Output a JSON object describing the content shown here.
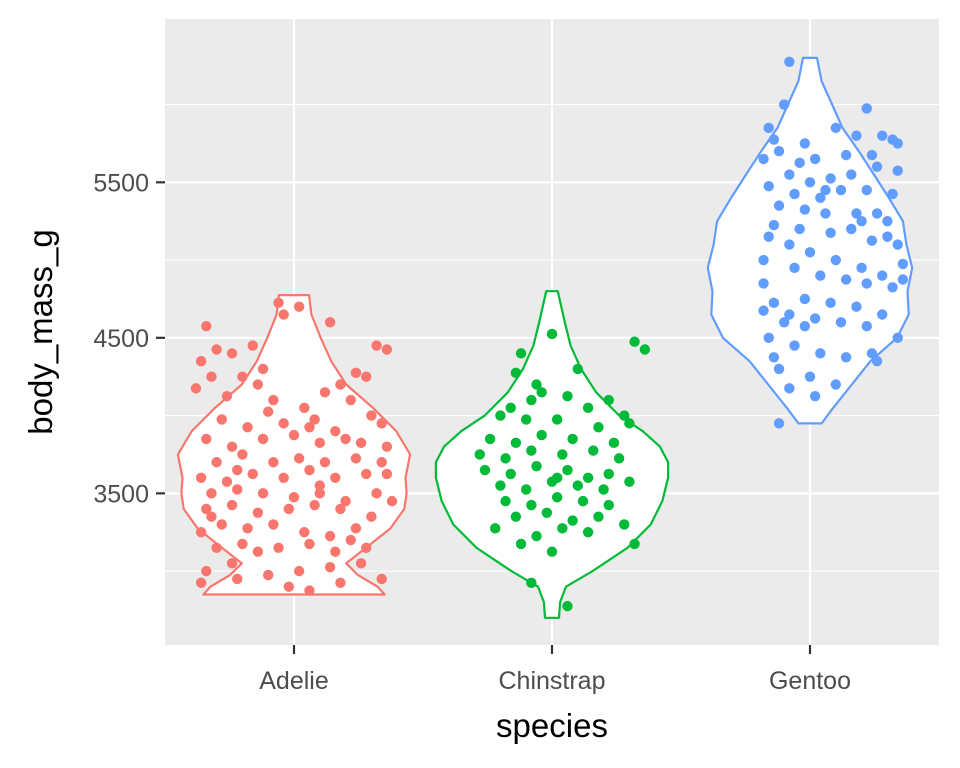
{
  "chart_data": {
    "type": "violin",
    "xlabel": "species",
    "ylabel": "body_mass_g",
    "categories": [
      "Adelie",
      "Chinstrap",
      "Gentoo"
    ],
    "ylim": [
      2525,
      6550
    ],
    "y_ticks": [
      3500,
      4500,
      5500
    ],
    "y_minor_ticks": [
      3000,
      4000,
      5000,
      6000
    ],
    "grid": true,
    "legend": "none",
    "colors": {
      "Adelie": "#F8766D",
      "Chinstrap": "#00BA38",
      "Gentoo": "#619CFF"
    },
    "panel_background": "#EBEBEB",
    "series": [
      {
        "category": "Adelie",
        "min": 2850,
        "max": 4775,
        "violin_profile": [
          [
            2850,
            0.78
          ],
          [
            2900,
            0.72
          ],
          [
            2975,
            0.55
          ],
          [
            3050,
            0.45
          ],
          [
            3150,
            0.62
          ],
          [
            3275,
            0.83
          ],
          [
            3400,
            0.95
          ],
          [
            3500,
            0.97
          ],
          [
            3600,
            0.96
          ],
          [
            3750,
            1.0
          ],
          [
            3900,
            0.88
          ],
          [
            4050,
            0.68
          ],
          [
            4200,
            0.45
          ],
          [
            4350,
            0.32
          ],
          [
            4500,
            0.23
          ],
          [
            4650,
            0.15
          ],
          [
            4775,
            0.13
          ]
        ],
        "points": [
          [
            -0.85,
            4575
          ],
          [
            -0.75,
            4425
          ],
          [
            -0.9,
            4350
          ],
          [
            -0.8,
            4250
          ],
          [
            -0.6,
            4400
          ],
          [
            -0.4,
            4450
          ],
          [
            -0.3,
            4300
          ],
          [
            -0.15,
            4725
          ],
          [
            -0.1,
            4650
          ],
          [
            0.05,
            4700
          ],
          [
            0.35,
            4600
          ],
          [
            0.8,
            4450
          ],
          [
            0.9,
            4425
          ],
          [
            0.6,
            4275
          ],
          [
            0.7,
            4250
          ],
          [
            0.45,
            4200
          ],
          [
            0.3,
            4150
          ],
          [
            -0.5,
            4250
          ],
          [
            -0.35,
            4200
          ],
          [
            -0.2,
            4100
          ],
          [
            0.1,
            4050
          ],
          [
            0.55,
            4100
          ],
          [
            0.75,
            4000
          ],
          [
            0.85,
            3950
          ],
          [
            -0.7,
            3975
          ],
          [
            -0.45,
            3925
          ],
          [
            -0.1,
            3950
          ],
          [
            0.2,
            3975
          ],
          [
            0.4,
            3900
          ],
          [
            -0.85,
            3850
          ],
          [
            -0.6,
            3800
          ],
          [
            -0.3,
            3850
          ],
          [
            0.0,
            3875
          ],
          [
            0.25,
            3825
          ],
          [
            0.5,
            3850
          ],
          [
            0.9,
            3800
          ],
          [
            -0.75,
            3700
          ],
          [
            -0.5,
            3750
          ],
          [
            -0.2,
            3700
          ],
          [
            0.05,
            3725
          ],
          [
            0.3,
            3700
          ],
          [
            0.6,
            3725
          ],
          [
            0.85,
            3700
          ],
          [
            -0.9,
            3600
          ],
          [
            -0.65,
            3575
          ],
          [
            -0.4,
            3625
          ],
          [
            -0.1,
            3600
          ],
          [
            0.15,
            3650
          ],
          [
            0.4,
            3600
          ],
          [
            0.7,
            3625
          ],
          [
            -0.8,
            3500
          ],
          [
            -0.55,
            3525
          ],
          [
            -0.3,
            3500
          ],
          [
            0.0,
            3475
          ],
          [
            0.25,
            3500
          ],
          [
            0.5,
            3450
          ],
          [
            0.8,
            3500
          ],
          [
            0.95,
            3450
          ],
          [
            -0.85,
            3400
          ],
          [
            -0.6,
            3425
          ],
          [
            -0.35,
            3375
          ],
          [
            -0.05,
            3400
          ],
          [
            0.2,
            3425
          ],
          [
            0.45,
            3400
          ],
          [
            0.75,
            3350
          ],
          [
            -0.9,
            3250
          ],
          [
            -0.7,
            3300
          ],
          [
            -0.45,
            3275
          ],
          [
            -0.2,
            3300
          ],
          [
            0.1,
            3250
          ],
          [
            0.35,
            3225
          ],
          [
            0.6,
            3275
          ],
          [
            -0.75,
            3150
          ],
          [
            -0.5,
            3175
          ],
          [
            -0.15,
            3150
          ],
          [
            0.15,
            3175
          ],
          [
            0.4,
            3125
          ],
          [
            0.7,
            3150
          ],
          [
            -0.85,
            3000
          ],
          [
            -0.6,
            3050
          ],
          [
            -0.25,
            2975
          ],
          [
            0.05,
            3000
          ],
          [
            0.35,
            3025
          ],
          [
            0.65,
            3050
          ],
          [
            -0.9,
            2925
          ],
          [
            -0.55,
            2950
          ],
          [
            0.15,
            2875
          ],
          [
            0.45,
            2925
          ],
          [
            0.85,
            2950
          ],
          [
            -0.95,
            4175
          ],
          [
            -0.65,
            4125
          ],
          [
            -0.25,
            4025
          ],
          [
            0.15,
            3925
          ],
          [
            0.65,
            3825
          ],
          [
            -0.55,
            3650
          ],
          [
            0.25,
            3550
          ],
          [
            -0.35,
            3125
          ],
          [
            0.55,
            3200
          ],
          [
            -0.05,
            2900
          ],
          [
            -0.8,
            3350
          ],
          [
            0.9,
            3625
          ]
        ]
      },
      {
        "category": "Chinstrap",
        "min": 2700,
        "max": 4800,
        "violin_profile": [
          [
            2700,
            0.06
          ],
          [
            2800,
            0.07
          ],
          [
            2900,
            0.12
          ],
          [
            3000,
            0.35
          ],
          [
            3150,
            0.65
          ],
          [
            3300,
            0.85
          ],
          [
            3450,
            0.95
          ],
          [
            3600,
            1.0
          ],
          [
            3700,
            1.0
          ],
          [
            3800,
            0.93
          ],
          [
            3900,
            0.78
          ],
          [
            4000,
            0.58
          ],
          [
            4150,
            0.38
          ],
          [
            4300,
            0.25
          ],
          [
            4450,
            0.16
          ],
          [
            4600,
            0.11
          ],
          [
            4800,
            0.05
          ]
        ],
        "points": [
          [
            -0.3,
            4400
          ],
          [
            -0.35,
            4275
          ],
          [
            0.0,
            4525
          ],
          [
            0.8,
            4475
          ],
          [
            0.9,
            4425
          ],
          [
            0.25,
            4300
          ],
          [
            -0.1,
            4150
          ],
          [
            -0.2,
            4100
          ],
          [
            0.15,
            4125
          ],
          [
            0.55,
            4100
          ],
          [
            0.7,
            4000
          ],
          [
            0.35,
            4050
          ],
          [
            -0.4,
            4050
          ],
          [
            -0.5,
            4000
          ],
          [
            -0.25,
            3975
          ],
          [
            0.05,
            3975
          ],
          [
            0.45,
            3925
          ],
          [
            0.75,
            3950
          ],
          [
            -0.6,
            3850
          ],
          [
            -0.35,
            3825
          ],
          [
            -0.1,
            3875
          ],
          [
            0.2,
            3850
          ],
          [
            0.6,
            3825
          ],
          [
            -0.7,
            3750
          ],
          [
            -0.45,
            3725
          ],
          [
            -0.2,
            3775
          ],
          [
            0.1,
            3750
          ],
          [
            0.4,
            3775
          ],
          [
            0.65,
            3725
          ],
          [
            -0.65,
            3650
          ],
          [
            -0.4,
            3625
          ],
          [
            -0.15,
            3675
          ],
          [
            0.15,
            3650
          ],
          [
            0.35,
            3600
          ],
          [
            0.55,
            3625
          ],
          [
            -0.5,
            3550
          ],
          [
            -0.25,
            3525
          ],
          [
            0.0,
            3575
          ],
          [
            0.25,
            3550
          ],
          [
            0.5,
            3525
          ],
          [
            0.75,
            3575
          ],
          [
            -0.45,
            3450
          ],
          [
            -0.2,
            3425
          ],
          [
            0.05,
            3475
          ],
          [
            0.3,
            3450
          ],
          [
            0.55,
            3425
          ],
          [
            -0.35,
            3350
          ],
          [
            -0.05,
            3375
          ],
          [
            0.2,
            3325
          ],
          [
            0.45,
            3350
          ],
          [
            -0.55,
            3275
          ],
          [
            -0.15,
            3225
          ],
          [
            0.1,
            3275
          ],
          [
            0.35,
            3250
          ],
          [
            0.8,
            3175
          ],
          [
            -0.3,
            3175
          ],
          [
            0.0,
            3125
          ],
          [
            -0.2,
            2925
          ],
          [
            0.15,
            2775
          ],
          [
            0.05,
            3600
          ],
          [
            -0.15,
            4200
          ],
          [
            0.7,
            3300
          ]
        ]
      },
      {
        "category": "Gentoo",
        "min": 3950,
        "max": 6300,
        "violin_profile": [
          [
            3950,
            0.1
          ],
          [
            4050,
            0.2
          ],
          [
            4200,
            0.36
          ],
          [
            4350,
            0.52
          ],
          [
            4500,
            0.75
          ],
          [
            4650,
            0.85
          ],
          [
            4800,
            0.84
          ],
          [
            4950,
            0.88
          ],
          [
            5100,
            0.83
          ],
          [
            5250,
            0.8
          ],
          [
            5400,
            0.68
          ],
          [
            5550,
            0.55
          ],
          [
            5700,
            0.42
          ],
          [
            5850,
            0.28
          ],
          [
            6000,
            0.19
          ],
          [
            6150,
            0.1
          ],
          [
            6300,
            0.06
          ]
        ],
        "points": [
          [
            -0.2,
            6275
          ],
          [
            -0.25,
            6000
          ],
          [
            0.55,
            5975
          ],
          [
            0.25,
            5850
          ],
          [
            0.45,
            5800
          ],
          [
            0.7,
            5800
          ],
          [
            0.8,
            5775
          ],
          [
            0.85,
            5750
          ],
          [
            -0.4,
            5850
          ],
          [
            -0.35,
            5775
          ],
          [
            -0.3,
            5700
          ],
          [
            -0.1,
            5625
          ],
          [
            0.05,
            5650
          ],
          [
            0.35,
            5675
          ],
          [
            0.6,
            5675
          ],
          [
            -0.45,
            5650
          ],
          [
            -0.2,
            5550
          ],
          [
            0.0,
            5500
          ],
          [
            0.2,
            5525
          ],
          [
            0.4,
            5550
          ],
          [
            0.65,
            5600
          ],
          [
            0.85,
            5575
          ],
          [
            -0.4,
            5475
          ],
          [
            -0.15,
            5425
          ],
          [
            0.1,
            5400
          ],
          [
            0.3,
            5450
          ],
          [
            0.55,
            5450
          ],
          [
            0.8,
            5425
          ],
          [
            -0.3,
            5350
          ],
          [
            -0.05,
            5325
          ],
          [
            0.15,
            5300
          ],
          [
            0.45,
            5300
          ],
          [
            0.75,
            5250
          ],
          [
            -0.35,
            5225
          ],
          [
            -0.1,
            5200
          ],
          [
            0.2,
            5175
          ],
          [
            0.4,
            5200
          ],
          [
            0.6,
            5125
          ],
          [
            0.85,
            5100
          ],
          [
            -0.4,
            5150
          ],
          [
            -0.2,
            5100
          ],
          [
            0.0,
            5050
          ],
          [
            0.25,
            5000
          ],
          [
            0.5,
            4950
          ],
          [
            0.7,
            4900
          ],
          [
            0.9,
            4875
          ],
          [
            -0.45,
            5000
          ],
          [
            -0.15,
            4950
          ],
          [
            0.1,
            4900
          ],
          [
            0.35,
            4875
          ],
          [
            0.55,
            4850
          ],
          [
            0.8,
            4825
          ],
          [
            -0.35,
            4725
          ],
          [
            -0.05,
            4750
          ],
          [
            0.2,
            4725
          ],
          [
            0.45,
            4700
          ],
          [
            0.7,
            4650
          ],
          [
            -0.45,
            4675
          ],
          [
            -0.2,
            4650
          ],
          [
            0.05,
            4625
          ],
          [
            0.3,
            4600
          ],
          [
            0.55,
            4575
          ],
          [
            -0.4,
            4500
          ],
          [
            -0.15,
            4450
          ],
          [
            0.1,
            4400
          ],
          [
            0.35,
            4375
          ],
          [
            0.65,
            4350
          ],
          [
            -0.3,
            4300
          ],
          [
            0.0,
            4250
          ],
          [
            0.25,
            4200
          ],
          [
            -0.2,
            4175
          ],
          [
            0.05,
            4125
          ],
          [
            -0.3,
            3950
          ],
          [
            -0.35,
            4375
          ],
          [
            0.6,
            4400
          ],
          [
            0.85,
            4500
          ],
          [
            -0.25,
            4600
          ],
          [
            -0.05,
            4575
          ],
          [
            0.9,
            4975
          ],
          [
            -0.45,
            4850
          ],
          [
            0.75,
            5150
          ],
          [
            0.65,
            5300
          ],
          [
            -0.05,
            5750
          ],
          [
            0.15,
            5450
          ],
          [
            0.5,
            5250
          ]
        ]
      }
    ]
  }
}
